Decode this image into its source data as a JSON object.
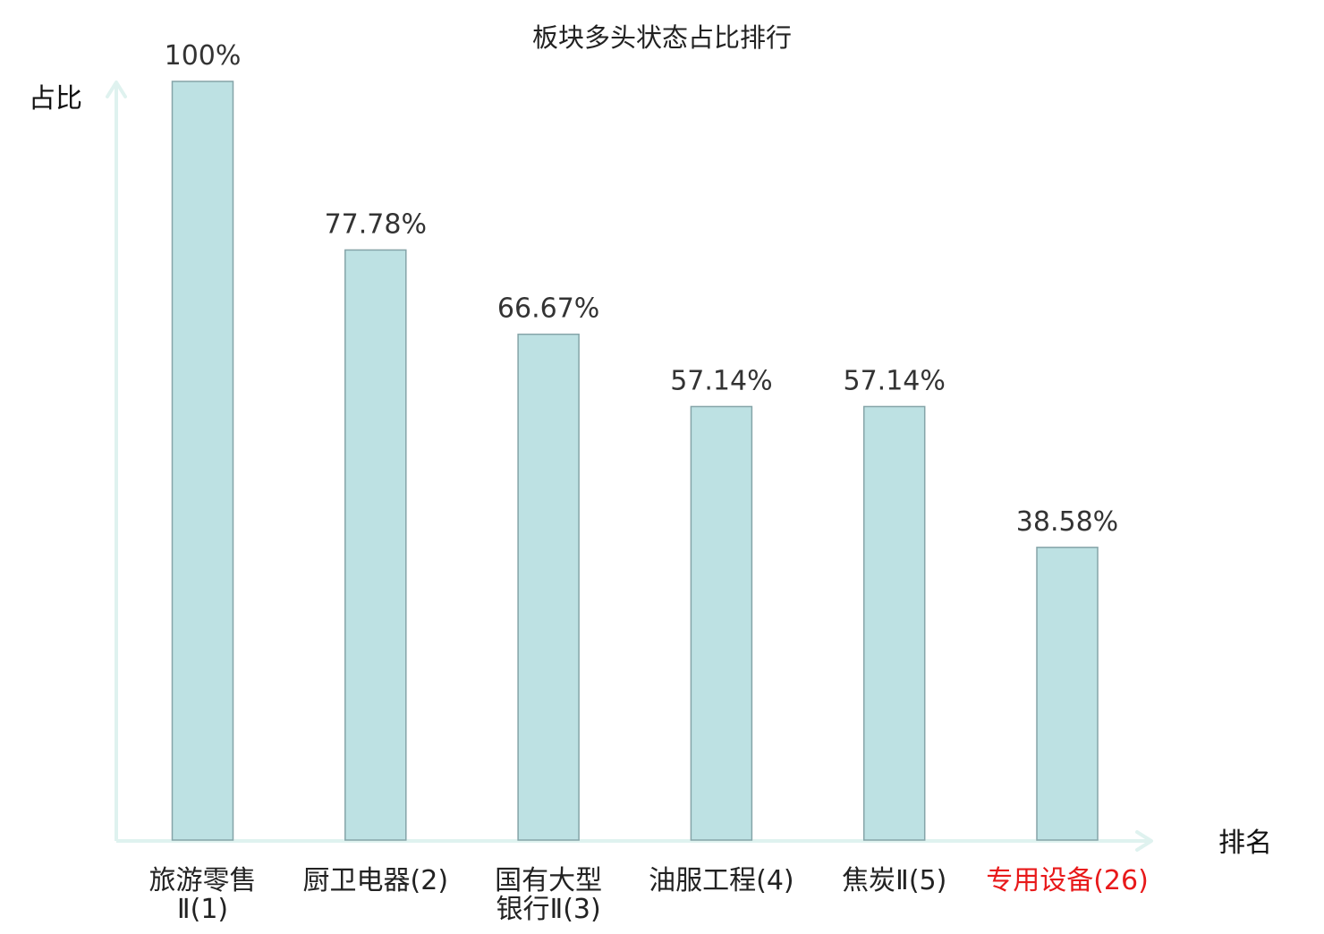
{
  "chart_data": {
    "type": "bar",
    "title": "板块多头状态占比排行",
    "xlabel": "排名",
    "ylabel": "占比",
    "categories": [
      [
        "旅游零售",
        "Ⅱ(1)"
      ],
      [
        "厨卫电器(2)"
      ],
      [
        "国有大型",
        "银行Ⅱ(3)"
      ],
      [
        "油服工程(4)"
      ],
      [
        "焦炭Ⅱ(5)"
      ],
      [
        "专用设备(26)"
      ]
    ],
    "values": [
      100,
      77.78,
      66.67,
      57.14,
      57.14,
      38.58
    ],
    "value_labels": [
      "100%",
      "77.78%",
      "66.67%",
      "57.14%",
      "57.14%",
      "38.58%"
    ],
    "highlight_index": 5,
    "ylim": [
      0,
      100
    ],
    "grid": false,
    "legend": "none"
  },
  "colors": {
    "bar_fill": "#bde1e3",
    "bar_stroke": "#85a4a8",
    "axis": "#dff2ef",
    "tick_text": "#222222",
    "highlight_text": "#e8191a",
    "value_text": "#333333"
  }
}
